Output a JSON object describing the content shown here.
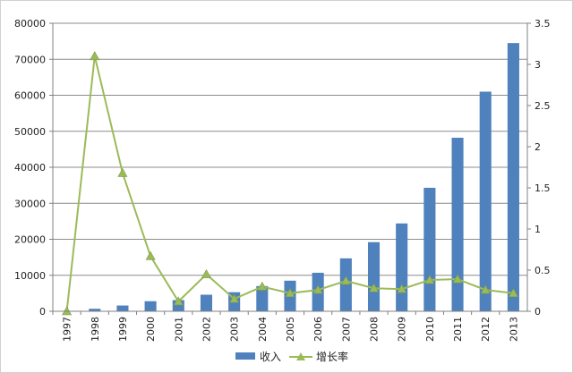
{
  "chart_data": {
    "type": "bar",
    "categories": [
      "1997",
      "1998",
      "1999",
      "2000",
      "2001",
      "2002",
      "2003",
      "2004",
      "2005",
      "2006",
      "2007",
      "2008",
      "2009",
      "2010",
      "2011",
      "2012",
      "2013"
    ],
    "series": [
      {
        "name": "收入",
        "type": "bar",
        "axis": "left",
        "color": "#4f81bd",
        "values": [
          0,
          700,
          1600,
          2800,
          3100,
          4600,
          5300,
          7000,
          8500,
          10700,
          14700,
          19200,
          24400,
          34300,
          48200,
          61000,
          74500
        ]
      },
      {
        "name": "增长率",
        "type": "line",
        "axis": "right",
        "color": "#9bbb59",
        "marker": "triangle",
        "values": [
          0,
          3.1,
          1.68,
          0.67,
          0.12,
          0.45,
          0.15,
          0.3,
          0.22,
          0.26,
          0.37,
          0.28,
          0.27,
          0.38,
          0.39,
          0.26,
          0.22
        ]
      }
    ],
    "y_left": {
      "ylim": [
        0,
        80000
      ],
      "ticks": [
        "0",
        "10000",
        "20000",
        "30000",
        "40000",
        "50000",
        "60000",
        "70000",
        "80000"
      ]
    },
    "y_right": {
      "ylim": [
        0,
        3.5
      ],
      "ticks": [
        "0",
        "0.5",
        "1",
        "1.5",
        "2",
        "2.5",
        "3",
        "3.5"
      ]
    },
    "grid": "horizontal",
    "legend_position": "bottom"
  }
}
